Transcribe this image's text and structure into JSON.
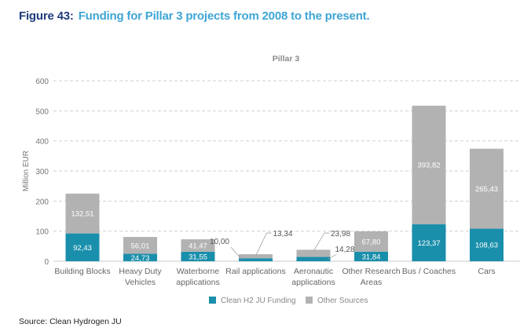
{
  "figure": {
    "number_label": "Figure 43:",
    "caption": "Funding for Pillar 3 projects from 2008 to the present.",
    "source": "Source: Clean Hydrogen JU"
  },
  "colors": {
    "title_number": "#1f3b7c",
    "title_text": "#3ea5d6",
    "series_clean_h2": "#1a8fab",
    "series_other": "#b2b2b2"
  },
  "chart_data": {
    "type": "bar",
    "stacked": true,
    "title": "Pillar 3",
    "xlabel": "",
    "ylabel": "Million EUR",
    "ylim": [
      0,
      600
    ],
    "yticks": [
      0,
      100,
      200,
      300,
      400,
      500,
      600
    ],
    "grid": true,
    "legend_position": "bottom",
    "categories": [
      [
        "Building Blocks"
      ],
      [
        "Heavy Duty",
        "Vehicles"
      ],
      [
        "Waterborne",
        "applications"
      ],
      [
        "Rail applications"
      ],
      [
        "Aeronautic",
        "applications"
      ],
      [
        "Other Research",
        "Areas"
      ],
      [
        "Bus / Coaches"
      ],
      [
        "Cars"
      ]
    ],
    "series": [
      {
        "name": "Clean H2 JU Funding",
        "color": "#1a8fab",
        "values": [
          92.43,
          24.73,
          31.55,
          10.0,
          14.28,
          31.84,
          123.37,
          108.63
        ],
        "labels": [
          "92,43",
          "24,73",
          "31,55",
          "10,00",
          "14,28",
          "31,84",
          "123,37",
          "108,63"
        ]
      },
      {
        "name": "Other Sources",
        "color": "#b2b2b2",
        "values": [
          132.51,
          56.01,
          41.47,
          13.34,
          23.98,
          67.8,
          393.82,
          265.43
        ],
        "labels": [
          "132,51",
          "56,01",
          "41,47",
          "13,34",
          "23,98",
          "67,80",
          "393,82",
          "265,43"
        ]
      }
    ]
  }
}
